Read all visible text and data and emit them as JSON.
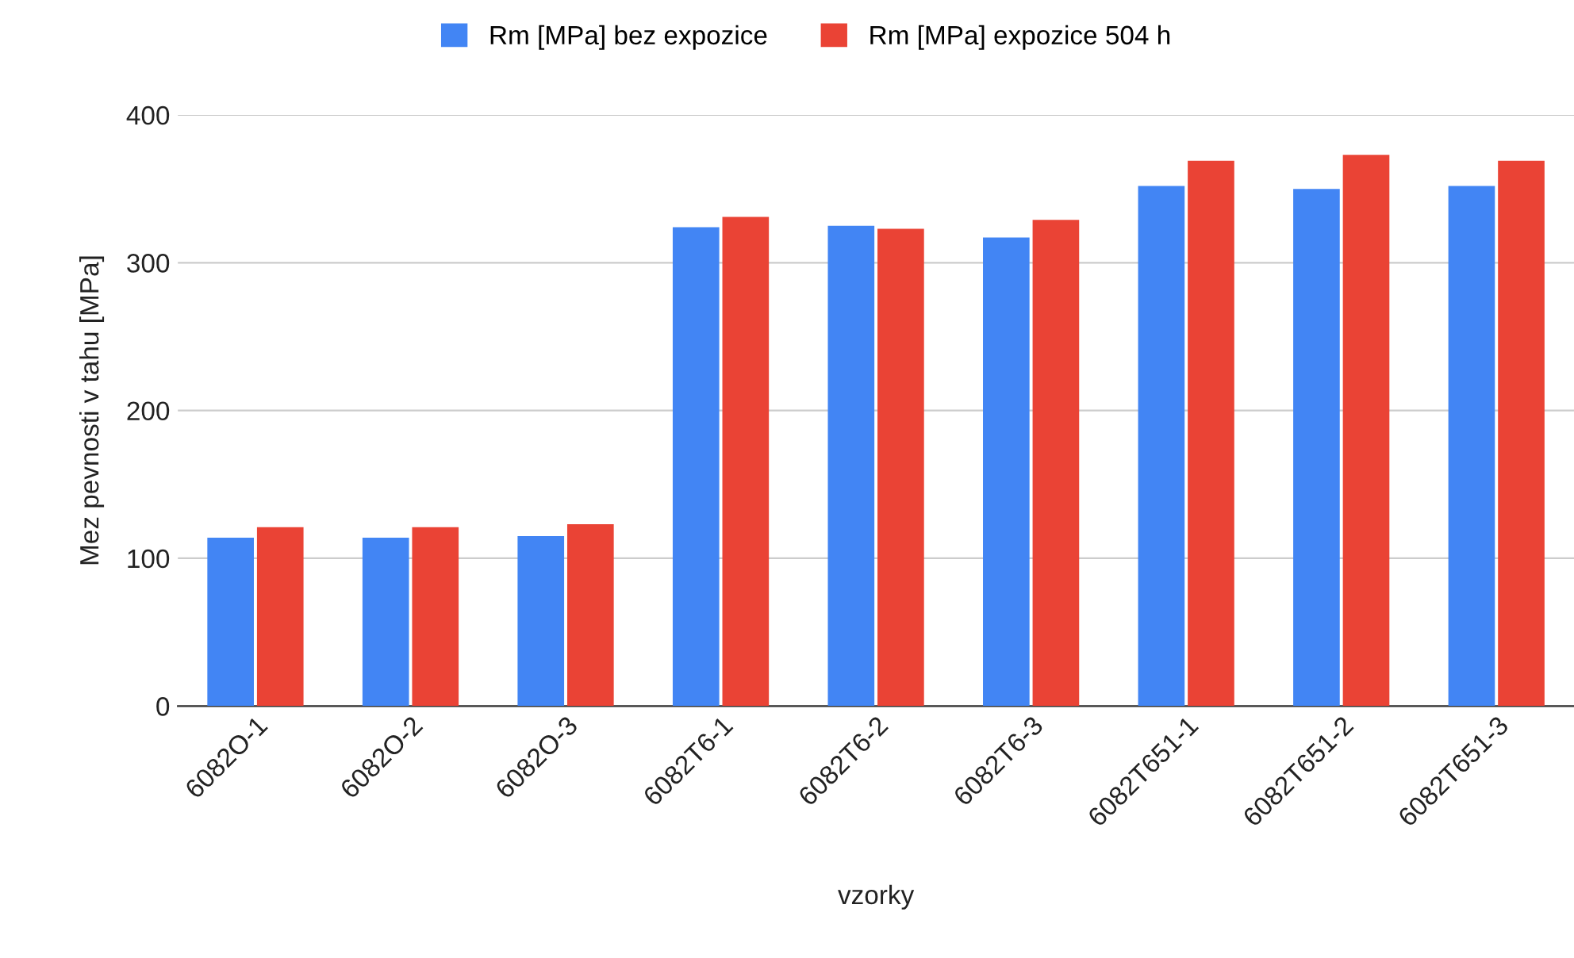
{
  "chart_data": {
    "type": "bar",
    "xlabel": "vzorky",
    "ylabel": "Mez pevnosti v tahu [MPa]",
    "categories": [
      "6082O-1",
      "6082O-2",
      "6082O-3",
      "6082T6-1",
      "6082T6-2",
      "6082T6-3",
      "6082T651-1",
      "6082T651-2",
      "6082T651-3"
    ],
    "series": [
      {
        "name": "Rm [MPa] bez expozice",
        "color": "#4285f4",
        "values": [
          114,
          114,
          115,
          324,
          325,
          317,
          352,
          350,
          352
        ]
      },
      {
        "name": "Rm [MPa] expozice 504 h",
        "color": "#ea4335",
        "values": [
          121,
          121,
          123,
          331,
          323,
          329,
          369,
          373,
          369
        ]
      }
    ],
    "ylim": [
      0,
      400
    ],
    "yticks": [
      0,
      100,
      200,
      300,
      400
    ],
    "grid": "y",
    "legend": "top"
  }
}
